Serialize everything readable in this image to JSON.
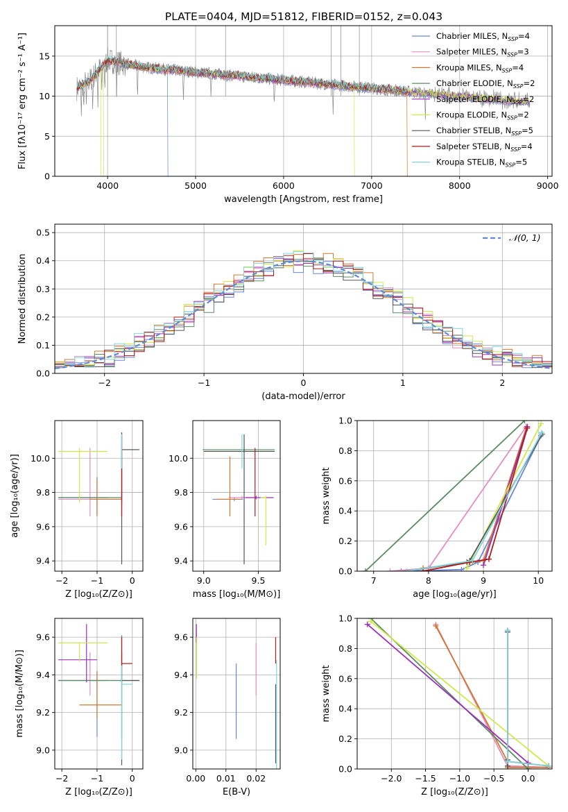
{
  "figure_title": "PLATE=0404, MJD=51812, FIBERID=0152, z=0.043",
  "legend": [
    {
      "text": "Chabrier MILES, N",
      "sub": "SSP",
      "tail": "=4",
      "color": "#6a86d8"
    },
    {
      "text": "Salpeter MILES, N",
      "sub": "SSP",
      "tail": "=3",
      "color": "#e38dc0"
    },
    {
      "text": "Kroupa MILES, N",
      "sub": "SSP",
      "tail": "=4",
      "color": "#d2772f"
    },
    {
      "text": "Chabrier ELODIE, N",
      "sub": "SSP",
      "tail": "=2",
      "color": "#5b8a63"
    },
    {
      "text": "Salpeter ELODIE, N",
      "sub": "SSP",
      "tail": "=2",
      "color": "#9b30b8"
    },
    {
      "text": "Kroupa ELODIE, N",
      "sub": "SSP",
      "tail": "=2",
      "color": "#cfe84a"
    },
    {
      "text": "Chabrier STELIB, N",
      "sub": "SSP",
      "tail": "=5",
      "color": "#555555"
    },
    {
      "text": "Salpeter STELIB, N",
      "sub": "SSP",
      "tail": "=4",
      "color": "#b21a1a"
    },
    {
      "text": "Kroupa STELIB, N",
      "sub": "SSP",
      "tail": "=5",
      "color": "#7fd6dc"
    }
  ],
  "data_color": "#888888",
  "normal_color": "#5b8bd8",
  "chart_data": [
    {
      "id": "spectrum",
      "type": "line",
      "xlabel": "wavelength [Angstrom, rest frame]",
      "ylabel": "Flux [fλ10⁻¹⁷ erg cm⁻² s⁻¹ A⁻¹]",
      "xlim": [
        3400,
        9050
      ],
      "ylim": [
        0,
        18.8
      ],
      "xticks": [
        4000,
        5000,
        6000,
        7000,
        8000,
        9000
      ],
      "yticks": [
        0,
        5,
        10,
        15
      ],
      "continuum": {
        "x": [
          3650,
          3800,
          4000,
          4200,
          4500,
          5000,
          5500,
          6000,
          6500,
          7000,
          7500,
          8000,
          8500,
          8800
        ],
        "y": [
          11.0,
          12.0,
          14.5,
          14.0,
          13.5,
          13.0,
          12.5,
          12.0,
          11.5,
          11.0,
          10.5,
          10.0,
          9.5,
          9.3
        ]
      },
      "model_drops": [
        {
          "series": "Kroupa ELODIE",
          "x": [
            3920,
            3950,
            6800
          ]
        },
        {
          "series": "Chabrier MILES",
          "x": [
            4680
          ]
        },
        {
          "series": "Kroupa MILES",
          "x": [
            7400
          ]
        }
      ]
    },
    {
      "id": "residuals",
      "type": "histogram",
      "xlabel": "(data-model)/error",
      "ylabel": "Normed distribution",
      "xlim": [
        -2.5,
        2.5
      ],
      "ylim": [
        0,
        0.53
      ],
      "xticks": [
        -2,
        -1,
        0,
        1,
        2
      ],
      "yticks": [
        0.0,
        0.1,
        0.2,
        0.3,
        0.4,
        0.5
      ],
      "bin_width": 0.1,
      "bin_start": -2.5,
      "normal_label": "𝒩(0, 1)"
    },
    {
      "id": "age-vs-Z",
      "type": "scatter",
      "xlabel": "Z [log₁₀(Z/Z⊙)]",
      "ylabel": "age  [log₁₀(age/yr)]",
      "xlim": [
        -2.2,
        0.3
      ],
      "ylim": [
        9.34,
        10.22
      ],
      "xticks": [
        -2,
        -1,
        0
      ],
      "yticks": [
        9.4,
        9.6,
        9.8,
        10.0
      ],
      "points": [
        {
          "x": -1.0,
          "y": 9.77,
          "xerr": [
            1.1,
            0.3
          ],
          "yerr": [
            0.1,
            0.12
          ],
          "color": "#6a86d8"
        },
        {
          "x": -1.2,
          "y": 9.76,
          "xerr": [
            0.9,
            0.9
          ],
          "yerr": [
            0.1,
            0.3
          ],
          "color": "#e38dc0"
        },
        {
          "x": -1.0,
          "y": 9.76,
          "xerr": [
            0.2,
            0.7
          ],
          "yerr": [
            0.1,
            0.12
          ],
          "color": "#d2772f"
        },
        {
          "x": -0.3,
          "y": 9.77,
          "xerr": [
            1.8,
            0.0
          ],
          "yerr": [
            0.04,
            0.36
          ],
          "color": "#5b8a63"
        },
        {
          "x": -0.3,
          "y": 10.05,
          "xerr": [
            0.0,
            0.5
          ],
          "yerr": [
            0.3,
            0.1
          ],
          "color": "#9b30b8"
        },
        {
          "x": -1.5,
          "y": 10.04,
          "xerr": [
            0.6,
            0.8
          ],
          "yerr": [
            0.3,
            0.02
          ],
          "color": "#cfe84a"
        },
        {
          "x": -0.3,
          "y": 10.05,
          "xerr": [
            0.0,
            0.5
          ],
          "yerr": [
            0.67,
            0.1
          ],
          "color": "#555555"
        },
        {
          "x": -0.3,
          "y": 9.76,
          "xerr": [
            0.0,
            0.0
          ],
          "yerr": [
            0.1,
            0.3
          ],
          "color": "#b21a1a"
        },
        {
          "x": -0.3,
          "y": 10.04,
          "xerr": [
            0.0,
            0.0
          ],
          "yerr": [
            0.1,
            0.1
          ],
          "color": "#7fd6dc"
        }
      ]
    },
    {
      "id": "age-vs-mass",
      "type": "scatter",
      "xlabel": "mass [log₁₀(M/M⊙)]",
      "ylabel": "",
      "xlim": [
        8.9,
        9.7
      ],
      "ylim": [
        9.34,
        10.22
      ],
      "xticks": [
        9.0,
        9.5
      ],
      "yticks": [
        9.4,
        9.6,
        9.8,
        10.0
      ],
      "points": [
        {
          "x": 9.28,
          "y": 9.76,
          "xerr": [
            0.2,
            0.08
          ],
          "yerr": [
            0.01,
            0.01
          ],
          "color": "#6a86d8"
        },
        {
          "x": 9.35,
          "y": 9.77,
          "xerr": [
            0.12,
            0.12
          ],
          "yerr": [
            0.01,
            0.01
          ],
          "color": "#e38dc0"
        },
        {
          "x": 9.24,
          "y": 9.76,
          "xerr": [
            0.12,
            0.1
          ],
          "yerr": [
            0.1,
            0.25
          ],
          "color": "#d2772f"
        },
        {
          "x": 9.37,
          "y": 10.05,
          "xerr": [
            0.38,
            0.28
          ],
          "yerr": [
            0.01,
            0.01
          ],
          "color": "#5b8a63"
        },
        {
          "x": 9.48,
          "y": 9.77,
          "xerr": [
            0.1,
            0.16
          ],
          "yerr": [
            0.01,
            0.01
          ],
          "color": "#9b30b8"
        },
        {
          "x": 9.57,
          "y": 9.77,
          "xerr": [
            0.05,
            0.0
          ],
          "yerr": [
            0.28,
            0.01
          ],
          "color": "#cfe84a"
        },
        {
          "x": 9.37,
          "y": 10.04,
          "xerr": [
            0.37,
            0.28
          ],
          "yerr": [
            0.66,
            0.1
          ],
          "color": "#555555"
        },
        {
          "x": 9.47,
          "y": 9.76,
          "xerr": [
            0.0,
            0.0
          ],
          "yerr": [
            0.1,
            0.3
          ],
          "color": "#b21a1a"
        },
        {
          "x": 9.35,
          "y": 10.04,
          "xerr": [
            0.0,
            0.0
          ],
          "yerr": [
            0.1,
            0.1
          ],
          "color": "#7fd6dc"
        }
      ]
    },
    {
      "id": "mass-weight-vs-age",
      "type": "line",
      "xlabel": "age  [log₁₀(age/yr)]",
      "ylabel": "mass weight",
      "xlim": [
        6.7,
        10.25
      ],
      "ylim": [
        0,
        1.0
      ],
      "xticks": [
        7,
        8,
        9,
        10
      ],
      "yticks": [
        0.0,
        0.2,
        0.4,
        0.6,
        0.8,
        1.0
      ],
      "series": [
        {
          "name": "Chabrier MILES",
          "color": "#6a86d8",
          "x": [
            7.5,
            8.6,
            8.9,
            10.05
          ],
          "y": [
            0.0,
            0.01,
            0.06,
            0.9
          ]
        },
        {
          "name": "Salpeter MILES",
          "color": "#e38dc0",
          "x": [
            7.3,
            8.0,
            9.78
          ],
          "y": [
            0.0,
            0.02,
            0.96
          ]
        },
        {
          "name": "Kroupa MILES",
          "color": "#d2772f",
          "x": [
            7.9,
            8.8,
            9.0,
            9.78
          ],
          "y": [
            0.02,
            0.06,
            0.07,
            0.95
          ]
        },
        {
          "name": "Chabrier ELODIE",
          "color": "#5b8a63",
          "x": [
            6.85,
            9.75
          ],
          "y": [
            0.0,
            1.0
          ]
        },
        {
          "name": "Salpeter ELODIE",
          "color": "#9b30b8",
          "x": [
            9.0,
            9.8
          ],
          "y": [
            0.04,
            0.96
          ]
        },
        {
          "name": "Kroupa ELODIE",
          "color": "#cfe84a",
          "x": [
            8.7,
            10.05
          ],
          "y": [
            0.02,
            0.98
          ]
        },
        {
          "name": "Chabrier STELIB",
          "color": "#555555",
          "x": [
            7.6,
            8.7,
            8.75,
            10.07
          ],
          "y": [
            0.0,
            0.06,
            0.07,
            0.91
          ]
        },
        {
          "name": "Salpeter STELIB",
          "color": "#b21a1a",
          "x": [
            7.9,
            8.75,
            9.1,
            9.8
          ],
          "y": [
            0.0,
            0.06,
            0.08,
            0.95
          ]
        },
        {
          "name": "Kroupa STELIB",
          "color": "#7fd6dc",
          "x": [
            7.6,
            8.8,
            10.06
          ],
          "y": [
            0.0,
            0.07,
            0.92
          ]
        }
      ]
    },
    {
      "id": "mass-vs-Z",
      "type": "scatter",
      "xlabel": "Z [log₁₀(Z/Z⊙)]",
      "ylabel": "mass [log₁₀(M/M⊙)]",
      "xlim": [
        -2.2,
        0.3
      ],
      "ylim": [
        8.9,
        9.7
      ],
      "xticks": [
        -2,
        -1,
        0
      ],
      "yticks": [
        9.0,
        9.2,
        9.4,
        9.6
      ],
      "points": [
        {
          "x": -1.0,
          "y": 9.37,
          "xerr": [
            1.1,
            0.3
          ],
          "yerr": [
            0.3,
            0.05
          ],
          "color": "#6a86d8"
        },
        {
          "x": -1.2,
          "y": 9.37,
          "xerr": [
            0.9,
            0.9
          ],
          "yerr": [
            0.08,
            0.15
          ],
          "color": "#e38dc0"
        },
        {
          "x": -1.0,
          "y": 9.24,
          "xerr": [
            0.5,
            0.7
          ],
          "yerr": [
            0.07,
            0.18
          ],
          "color": "#d2772f"
        },
        {
          "x": -0.3,
          "y": 9.37,
          "xerr": [
            1.8,
            0.5
          ],
          "yerr": [
            0.3,
            0.24
          ],
          "color": "#5b8a63"
        },
        {
          "x": -1.3,
          "y": 9.48,
          "xerr": [
            0.8,
            0.3
          ],
          "yerr": [
            0.12,
            0.19
          ],
          "color": "#9b30b8"
        },
        {
          "x": -1.5,
          "y": 9.57,
          "xerr": [
            0.6,
            0.8
          ],
          "yerr": [
            0.1,
            0.0
          ],
          "color": "#cfe84a"
        },
        {
          "x": -0.3,
          "y": 9.37,
          "xerr": [
            0.0,
            0.5
          ],
          "yerr": [
            0.45,
            0.15
          ],
          "color": "#555555"
        },
        {
          "x": -0.3,
          "y": 9.46,
          "xerr": [
            0.0,
            0.3
          ],
          "yerr": [
            0.1,
            0.14
          ],
          "color": "#b21a1a"
        },
        {
          "x": -0.3,
          "y": 9.35,
          "xerr": [
            0.0,
            0.3
          ],
          "yerr": [
            0.4,
            0.1
          ],
          "color": "#7fd6dc"
        }
      ]
    },
    {
      "id": "mass-vs-EBV",
      "type": "scatter",
      "xlabel": "E(B-V)",
      "ylabel": "",
      "xlim": [
        -0.001,
        0.028
      ],
      "ylim": [
        8.9,
        9.7
      ],
      "xticks": [
        0.0,
        0.01,
        0.02
      ],
      "xtick_labels": [
        "0.00",
        "0.01",
        "0.02"
      ],
      "yticks": [
        9.0,
        9.2,
        9.4,
        9.6
      ],
      "points": [
        {
          "x": 0.0134,
          "y": 9.26,
          "xerr": [
            0,
            0
          ],
          "yerr": [
            0.2,
            0.2
          ],
          "color": "#6a86d8"
        },
        {
          "x": 0.02,
          "y": 9.43,
          "xerr": [
            0,
            0
          ],
          "yerr": [
            0.14,
            0.14
          ],
          "color": "#e38dc0"
        },
        {
          "x": 0.0002,
          "y": 9.62,
          "xerr": [
            0,
            0
          ],
          "yerr": [
            0.05,
            0.05
          ],
          "color": "#9b30b8"
        },
        {
          "x": 0.0003,
          "y": 9.5,
          "xerr": [
            0,
            0
          ],
          "yerr": [
            0.12,
            0.1
          ],
          "color": "#cfe84a"
        },
        {
          "x": 0.0265,
          "y": 9.2,
          "xerr": [
            0,
            0
          ],
          "yerr": [
            0.27,
            0.15
          ],
          "color": "#555555"
        },
        {
          "x": 0.0265,
          "y": 9.53,
          "xerr": [
            0,
            0
          ],
          "yerr": [
            0.07,
            0.07
          ],
          "color": "#b21a1a"
        },
        {
          "x": 0.0268,
          "y": 9.2,
          "xerr": [
            0,
            0
          ],
          "yerr": [
            0.3,
            0.28
          ],
          "color": "#7fd6dc"
        }
      ]
    },
    {
      "id": "mass-weight-vs-Z",
      "type": "line",
      "xlabel": "Z [log₁₀(Z/Z⊙)]",
      "ylabel": "mass weight",
      "xlim": [
        -2.5,
        0.35
      ],
      "ylim": [
        0,
        1.0
      ],
      "xticks": [
        -2.0,
        -1.5,
        -1.0,
        -0.5,
        0.0
      ],
      "xtick_labels": [
        "−2.0",
        "−1.5",
        "−1.0",
        "−0.5",
        "0.0"
      ],
      "yticks": [
        0.0,
        0.2,
        0.4,
        0.6,
        0.8,
        1.0
      ],
      "series": [
        {
          "name": "Chabrier MILES",
          "color": "#6a86d8",
          "x": [
            -0.3,
            -0.3,
            -0.3,
            0.3
          ],
          "y": [
            0.91,
            0.05,
            0.02,
            0.01
          ]
        },
        {
          "name": "Salpeter MILES",
          "color": "#e38dc0",
          "x": [
            -1.35,
            -0.3,
            0.3
          ],
          "y": [
            0.96,
            0.02,
            0.01
          ]
        },
        {
          "name": "Kroupa MILES",
          "color": "#d2772f",
          "x": [
            -1.35,
            -0.3,
            -0.3,
            0.3
          ],
          "y": [
            0.95,
            0.05,
            0.01,
            0.01
          ]
        },
        {
          "name": "Chabrier ELODIE",
          "color": "#5b8a63",
          "x": [
            -2.3,
            0.0
          ],
          "y": [
            1.0,
            0.0
          ]
        },
        {
          "name": "Salpeter ELODIE",
          "color": "#9b30b8",
          "x": [
            -2.35,
            0.0
          ],
          "y": [
            0.96,
            0.04
          ]
        },
        {
          "name": "Kroupa ELODIE",
          "color": "#cfe84a",
          "x": [
            -2.3,
            0.3
          ],
          "y": [
            0.98,
            0.02
          ]
        },
        {
          "name": "Chabrier STELIB",
          "color": "#555555",
          "x": [
            -0.3,
            -0.3,
            -0.3
          ],
          "y": [
            0.91,
            0.06,
            0.02
          ]
        },
        {
          "name": "Salpeter STELIB",
          "color": "#b21a1a",
          "x": [
            -0.3,
            -0.3,
            0.3
          ],
          "y": [
            0.92,
            0.05,
            0.02
          ]
        },
        {
          "name": "Kroupa STELIB",
          "color": "#7fd6dc",
          "x": [
            -0.3,
            -0.3,
            0.3
          ],
          "y": [
            0.92,
            0.05,
            0.02
          ]
        }
      ]
    }
  ]
}
